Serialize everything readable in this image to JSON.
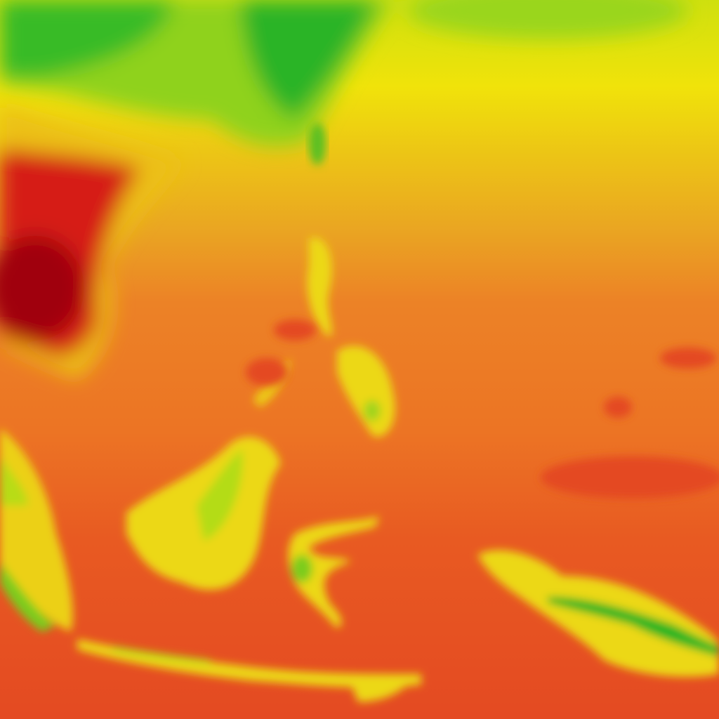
{
  "map": {
    "type": "temperature-heatmap-tile",
    "palette": {
      "cold_green": "#22b524",
      "green_yellow": "#8fd21e",
      "yellow": "#eaea0a",
      "yellow_orange": "#eab020",
      "orange": "#ec7c26",
      "red_orange": "#e44a22",
      "red": "#d01818",
      "dark_red": "#a00010"
    }
  }
}
